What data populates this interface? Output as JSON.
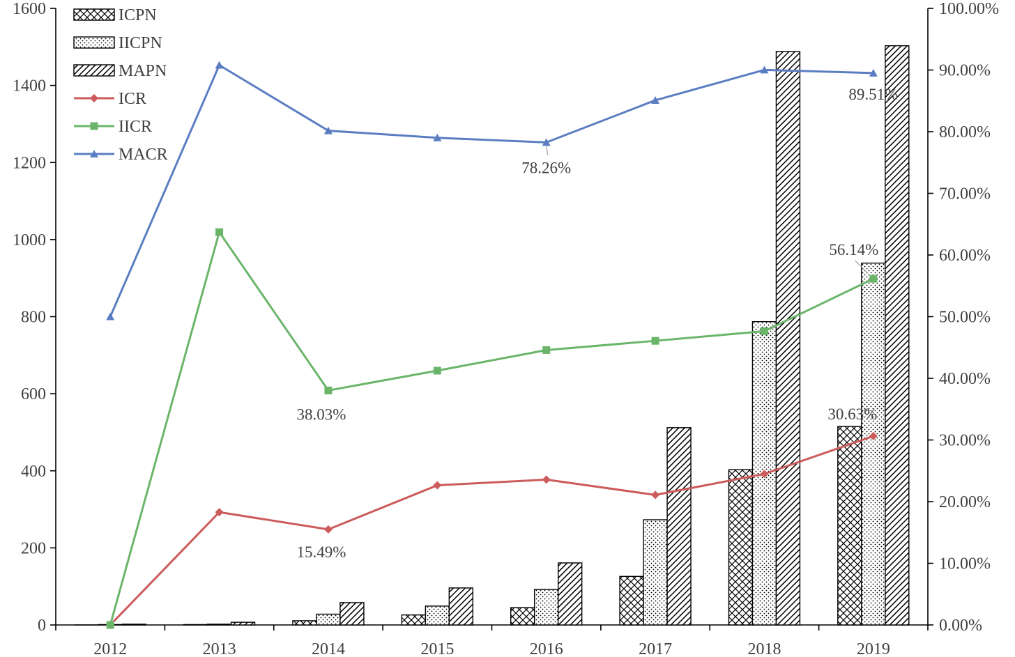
{
  "chart_data": {
    "type": "bar",
    "categories": [
      "2012",
      "2013",
      "2014",
      "2015",
      "2016",
      "2017",
      "2018",
      "2019"
    ],
    "ylim_left": [
      0,
      1600
    ],
    "yticks_left": [
      "0",
      "200",
      "400",
      "600",
      "800",
      "1000",
      "1200",
      "1400",
      "1600"
    ],
    "ylim_right": [
      0,
      1.0
    ],
    "yticks_right": [
      "0.00%",
      "10.00%",
      "20.00%",
      "30.00%",
      "40.00%",
      "50.00%",
      "60.00%",
      "70.00%",
      "80.00%",
      "90.00%",
      "100.00%"
    ],
    "grid": false,
    "legend_position": "top-left",
    "bar_series": [
      {
        "name": "ICPN",
        "pattern": "crosshatch",
        "values": [
          0,
          1,
          11,
          26,
          45,
          126,
          403,
          515
        ]
      },
      {
        "name": "IICPN",
        "pattern": "dots",
        "values": [
          1,
          2,
          28,
          49,
          92,
          273,
          787,
          939
        ]
      },
      {
        "name": "MAPN",
        "pattern": "diagonal",
        "values": [
          2,
          7,
          58,
          96,
          161,
          512,
          1488,
          1503
        ]
      }
    ],
    "line_series": [
      {
        "name": "ICR",
        "color": "#cc5b5b",
        "marker": "diamond",
        "axis": "right",
        "values": [
          0.0,
          0.1829,
          0.1549,
          0.2265,
          0.2357,
          0.2109,
          0.2449,
          0.3063
        ]
      },
      {
        "name": "IICR",
        "color": "#6bb56b",
        "marker": "square",
        "axis": "right",
        "values": [
          0.0,
          0.6371,
          0.3803,
          0.4124,
          0.4458,
          0.4608,
          0.4764,
          0.5614
        ]
      },
      {
        "name": "MACR",
        "color": "#5b7ec2",
        "marker": "triangle",
        "axis": "right",
        "values": [
          0.5,
          0.9079,
          0.8016,
          0.7901,
          0.7826,
          0.8509,
          0.9002,
          0.8951
        ]
      }
    ],
    "annotations": [
      {
        "series": "MACR",
        "category": "2016",
        "text": "78.26%"
      },
      {
        "series": "MACR",
        "category": "2019",
        "text": "89.51%"
      },
      {
        "series": "IICR",
        "category": "2014",
        "text": "38.03%"
      },
      {
        "series": "IICR",
        "category": "2019",
        "text": "56.14%"
      },
      {
        "series": "ICR",
        "category": "2014",
        "text": "15.49%"
      },
      {
        "series": "ICR",
        "category": "2019",
        "text": "30.63%"
      }
    ]
  }
}
